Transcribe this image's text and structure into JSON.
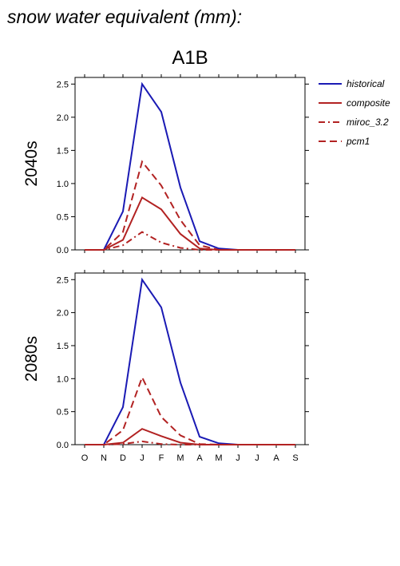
{
  "title": "snow water equivalent (mm):",
  "scenario": "A1B",
  "legend": [
    {
      "label": "historical",
      "color": "#1a1ab4",
      "dash": ""
    },
    {
      "label": "composite",
      "color": "#b22222",
      "dash": ""
    },
    {
      "label": "miroc_3.2",
      "color": "#b22222",
      "dash": "8,4,2,4"
    },
    {
      "label": "pcm1",
      "color": "#b22222",
      "dash": "9,5"
    }
  ],
  "chart_data": [
    {
      "type": "line",
      "period_label": "2040s",
      "categories": [
        "O",
        "N",
        "D",
        "J",
        "F",
        "M",
        "A",
        "M",
        "J",
        "J",
        "A",
        "S"
      ],
      "ylim": [
        0,
        2.6
      ],
      "yticks": [
        "0.0",
        "0.5",
        "1.0",
        "1.5",
        "2.0",
        "2.5"
      ],
      "show_x_tick_labels": false,
      "series": [
        {
          "name": "historical",
          "values": [
            0,
            0,
            0.58,
            2.5,
            2.08,
            0.94,
            0.13,
            0.02,
            0,
            0,
            0,
            0
          ]
        },
        {
          "name": "composite",
          "values": [
            0,
            0,
            0.15,
            0.79,
            0.61,
            0.24,
            0.02,
            0,
            0,
            0,
            0,
            0
          ]
        },
        {
          "name": "miroc_3.2",
          "values": [
            0,
            0,
            0.07,
            0.27,
            0.11,
            0.03,
            0,
            0,
            0,
            0,
            0,
            0
          ]
        },
        {
          "name": "pcm1",
          "values": [
            0,
            0,
            0.27,
            1.33,
            0.97,
            0.45,
            0.07,
            0,
            0,
            0,
            0,
            0
          ]
        }
      ]
    },
    {
      "type": "line",
      "period_label": "2080s",
      "categories": [
        "O",
        "N",
        "D",
        "J",
        "F",
        "M",
        "A",
        "M",
        "J",
        "J",
        "A",
        "S"
      ],
      "ylim": [
        0,
        2.6
      ],
      "yticks": [
        "0.0",
        "0.5",
        "1.0",
        "1.5",
        "2.0",
        "2.5"
      ],
      "show_x_tick_labels": true,
      "series": [
        {
          "name": "historical",
          "values": [
            0,
            0,
            0.57,
            2.5,
            2.08,
            0.94,
            0.12,
            0.02,
            0,
            0,
            0,
            0
          ]
        },
        {
          "name": "composite",
          "values": [
            0,
            0,
            0.03,
            0.24,
            0.13,
            0.03,
            0,
            0,
            0,
            0,
            0,
            0
          ]
        },
        {
          "name": "miroc_3.2",
          "values": [
            0,
            0,
            0.01,
            0.05,
            0.01,
            0,
            0,
            0,
            0,
            0,
            0,
            0
          ]
        },
        {
          "name": "pcm1",
          "values": [
            0,
            0,
            0.22,
            1.02,
            0.42,
            0.14,
            0.01,
            0,
            0,
            0,
            0,
            0
          ]
        }
      ]
    }
  ]
}
